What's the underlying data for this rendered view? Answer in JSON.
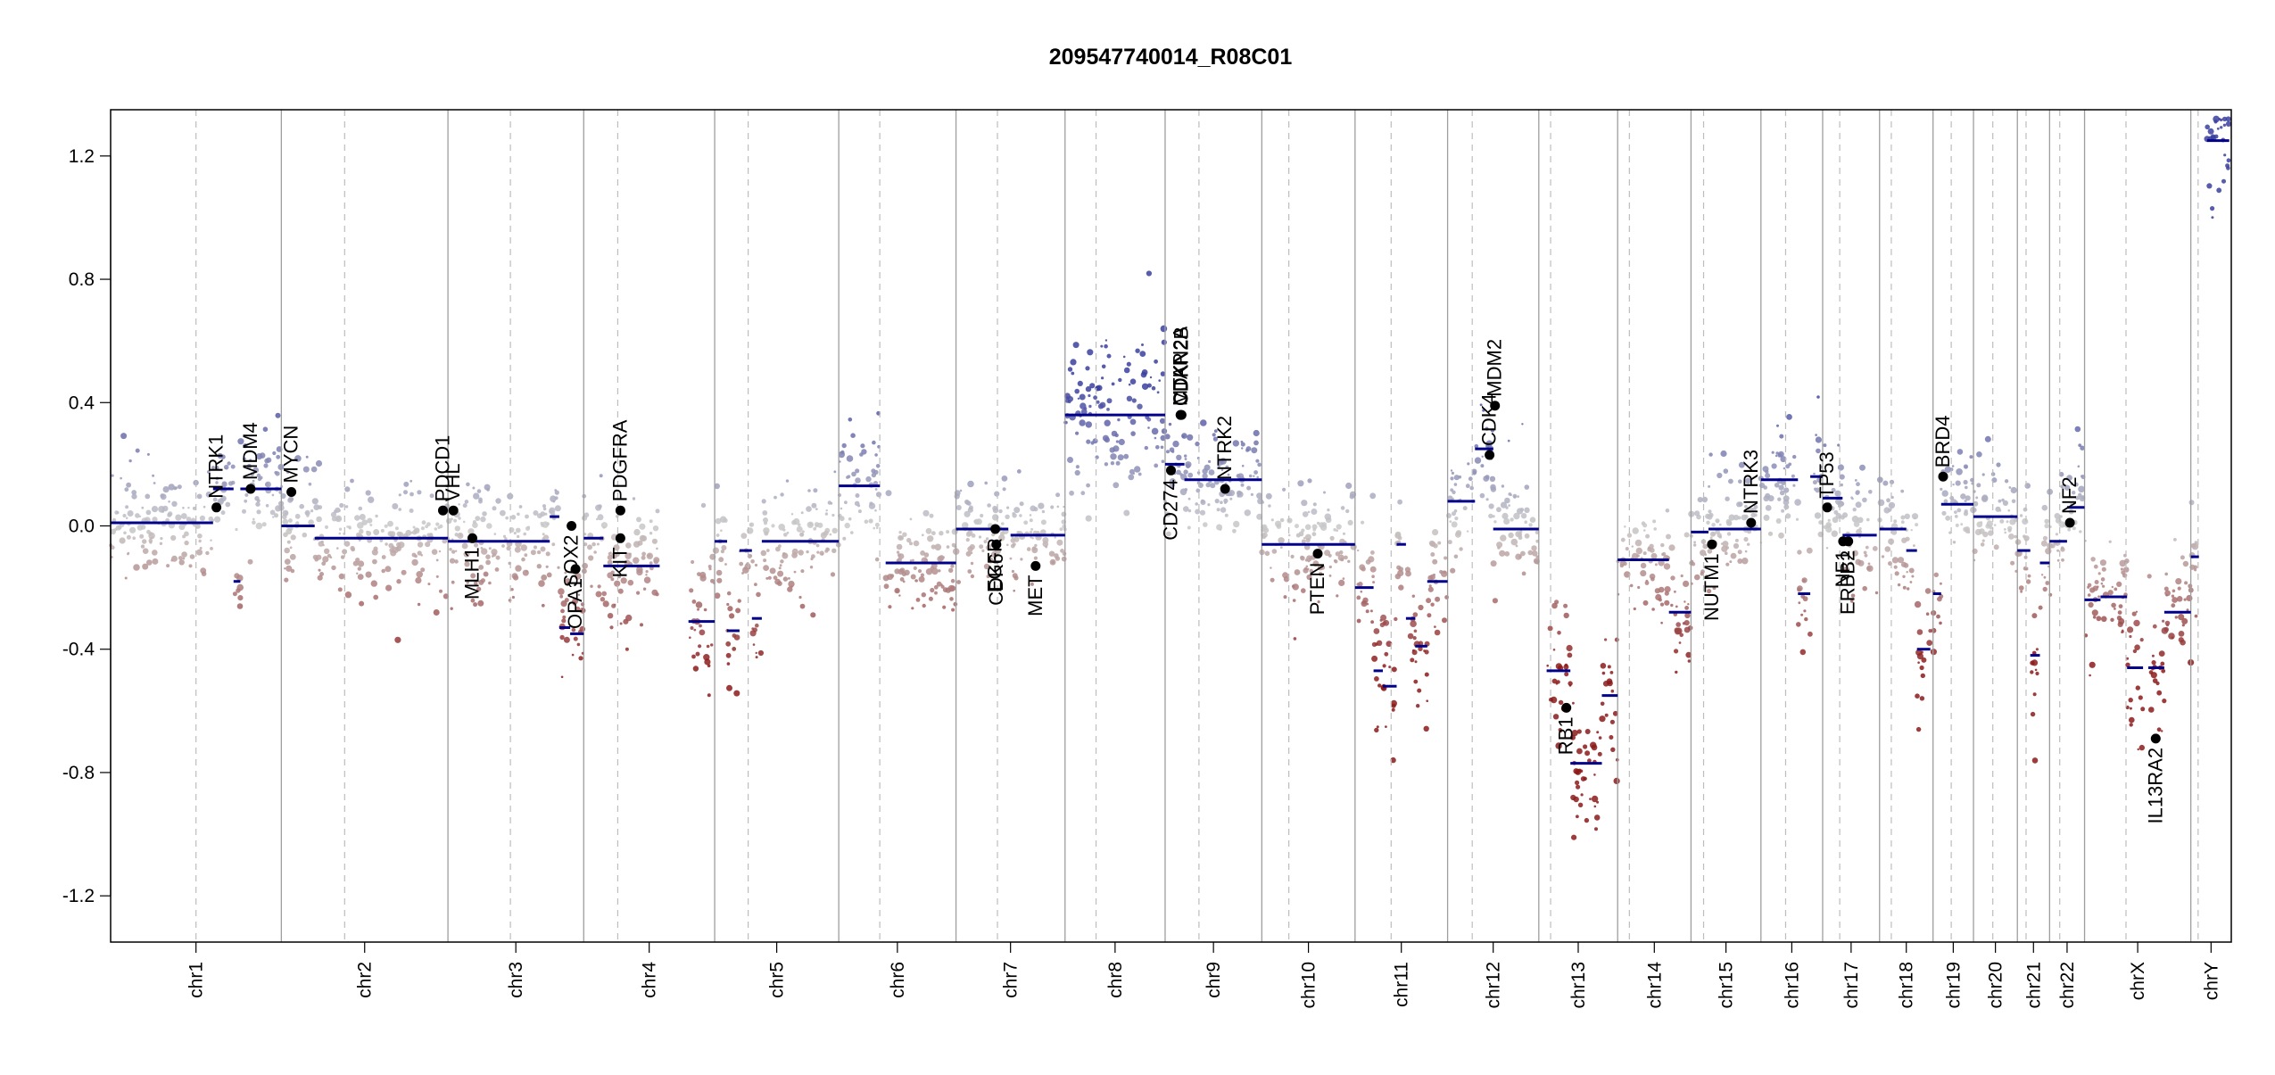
{
  "chart_data": {
    "type": "scatter",
    "title": "209547740014_R08C01",
    "xlabel": "",
    "ylabel": "",
    "ylim": [
      -1.35,
      1.35
    ],
    "y_ticks": [
      "1.2",
      "0.8",
      "0.4",
      "0.0",
      "-0.4",
      "-0.8",
      "-1.2"
    ],
    "y_tick_values": [
      1.2,
      0.8,
      0.4,
      0.0,
      -0.4,
      -0.8,
      -1.2
    ],
    "grid": false,
    "colors": {
      "gain": "#3a3f9e",
      "neutral": "#c9c9c9",
      "loss": "#8b1a1a",
      "segment": "#00008b",
      "gene": "#000000",
      "divider": "#9e9e9e",
      "centromere": "#bdbdbd"
    },
    "chromosomes": [
      {
        "name": "chr1",
        "size": 249,
        "cen": 0.5
      },
      {
        "name": "chr2",
        "size": 243,
        "cen": 0.38
      },
      {
        "name": "chr3",
        "size": 198,
        "cen": 0.46
      },
      {
        "name": "chr4",
        "size": 191,
        "cen": 0.26
      },
      {
        "name": "chr5",
        "size": 181,
        "cen": 0.27
      },
      {
        "name": "chr6",
        "size": 171,
        "cen": 0.35
      },
      {
        "name": "chr7",
        "size": 159,
        "cen": 0.38
      },
      {
        "name": "chr8",
        "size": 146,
        "cen": 0.31
      },
      {
        "name": "chr9",
        "size": 141,
        "cen": 0.35
      },
      {
        "name": "chr10",
        "size": 136,
        "cen": 0.29
      },
      {
        "name": "chr11",
        "size": 135,
        "cen": 0.39
      },
      {
        "name": "chr12",
        "size": 133,
        "cen": 0.27
      },
      {
        "name": "chr13",
        "size": 115,
        "cen": 0.15
      },
      {
        "name": "chr14",
        "size": 107,
        "cen": 0.16
      },
      {
        "name": "chr15",
        "size": 102,
        "cen": 0.18
      },
      {
        "name": "chr16",
        "size": 90,
        "cen": 0.4
      },
      {
        "name": "chr17",
        "size": 83,
        "cen": 0.3
      },
      {
        "name": "chr18",
        "size": 78,
        "cen": 0.22
      },
      {
        "name": "chr19",
        "size": 59,
        "cen": 0.45
      },
      {
        "name": "chr20",
        "size": 64,
        "cen": 0.44
      },
      {
        "name": "chr21",
        "size": 47,
        "cen": 0.27
      },
      {
        "name": "chr22",
        "size": 51,
        "cen": 0.29
      },
      {
        "name": "chrX",
        "size": 155,
        "cen": 0.39
      },
      {
        "name": "chrY",
        "size": 59,
        "cen": 0.18
      }
    ],
    "segments": [
      {
        "chr": "chr1",
        "start": 0.0,
        "end": 0.6,
        "value": 0.01
      },
      {
        "chr": "chr1",
        "start": 0.6,
        "end": 0.72,
        "value": 0.12
      },
      {
        "chr": "chr1",
        "start": 0.72,
        "end": 0.76,
        "value": -0.18
      },
      {
        "chr": "chr1",
        "start": 0.76,
        "end": 1.0,
        "value": 0.12
      },
      {
        "chr": "chr2",
        "start": 0.0,
        "end": 0.2,
        "value": 0.0
      },
      {
        "chr": "chr2",
        "start": 0.2,
        "end": 0.7,
        "value": -0.04
      },
      {
        "chr": "chr2",
        "start": 0.7,
        "end": 1.0,
        "value": -0.04
      },
      {
        "chr": "chr3",
        "start": 0.0,
        "end": 0.75,
        "value": -0.05
      },
      {
        "chr": "chr3",
        "start": 0.75,
        "end": 0.82,
        "value": 0.03
      },
      {
        "chr": "chr3",
        "start": 0.82,
        "end": 0.9,
        "value": -0.33
      },
      {
        "chr": "chr3",
        "start": 0.9,
        "end": 1.0,
        "value": -0.35
      },
      {
        "chr": "chr4",
        "start": 0.0,
        "end": 0.15,
        "value": -0.04
      },
      {
        "chr": "chr4",
        "start": 0.15,
        "end": 0.58,
        "value": -0.13
      },
      {
        "chr": "chr4",
        "start": 0.8,
        "end": 1.0,
        "value": -0.31
      },
      {
        "chr": "chr5",
        "start": 0.0,
        "end": 0.1,
        "value": -0.05
      },
      {
        "chr": "chr5",
        "start": 0.1,
        "end": 0.2,
        "value": -0.34
      },
      {
        "chr": "chr5",
        "start": 0.2,
        "end": 0.3,
        "value": -0.08
      },
      {
        "chr": "chr5",
        "start": 0.3,
        "end": 0.38,
        "value": -0.3
      },
      {
        "chr": "chr5",
        "start": 0.38,
        "end": 1.0,
        "value": -0.05
      },
      {
        "chr": "chr6",
        "start": 0.0,
        "end": 0.35,
        "value": 0.13
      },
      {
        "chr": "chr6",
        "start": 0.4,
        "end": 1.0,
        "value": -0.12
      },
      {
        "chr": "chr7",
        "start": 0.0,
        "end": 0.48,
        "value": -0.01
      },
      {
        "chr": "chr7",
        "start": 0.5,
        "end": 1.0,
        "value": -0.03
      },
      {
        "chr": "chr8",
        "start": 0.0,
        "end": 1.0,
        "value": 0.36
      },
      {
        "chr": "chr9",
        "start": 0.0,
        "end": 0.2,
        "value": 0.2
      },
      {
        "chr": "chr9",
        "start": 0.2,
        "end": 1.0,
        "value": 0.15
      },
      {
        "chr": "chr10",
        "start": 0.0,
        "end": 1.0,
        "value": -0.06
      },
      {
        "chr": "chr11",
        "start": 0.0,
        "end": 0.2,
        "value": -0.2
      },
      {
        "chr": "chr11",
        "start": 0.2,
        "end": 0.3,
        "value": -0.47
      },
      {
        "chr": "chr11",
        "start": 0.3,
        "end": 0.45,
        "value": -0.52
      },
      {
        "chr": "chr11",
        "start": 0.45,
        "end": 0.55,
        "value": -0.06
      },
      {
        "chr": "chr11",
        "start": 0.55,
        "end": 0.65,
        "value": -0.3
      },
      {
        "chr": "chr11",
        "start": 0.65,
        "end": 0.78,
        "value": -0.39
      },
      {
        "chr": "chr11",
        "start": 0.78,
        "end": 1.0,
        "value": -0.18
      },
      {
        "chr": "chr12",
        "start": 0.0,
        "end": 0.3,
        "value": 0.08
      },
      {
        "chr": "chr12",
        "start": 0.3,
        "end": 0.5,
        "value": 0.25
      },
      {
        "chr": "chr12",
        "start": 0.5,
        "end": 1.0,
        "value": -0.01
      },
      {
        "chr": "chr13",
        "start": 0.1,
        "end": 0.4,
        "value": -0.47
      },
      {
        "chr": "chr13",
        "start": 0.4,
        "end": 0.8,
        "value": -0.77
      },
      {
        "chr": "chr13",
        "start": 0.8,
        "end": 1.0,
        "value": -0.55
      },
      {
        "chr": "chr14",
        "start": 0.0,
        "end": 0.7,
        "value": -0.11
      },
      {
        "chr": "chr14",
        "start": 0.7,
        "end": 1.0,
        "value": -0.28
      },
      {
        "chr": "chr15",
        "start": 0.0,
        "end": 0.25,
        "value": -0.02
      },
      {
        "chr": "chr15",
        "start": 0.25,
        "end": 1.0,
        "value": -0.01
      },
      {
        "chr": "chr16",
        "start": 0.0,
        "end": 0.6,
        "value": 0.15
      },
      {
        "chr": "chr16",
        "start": 0.6,
        "end": 0.8,
        "value": -0.22
      },
      {
        "chr": "chr16",
        "start": 0.8,
        "end": 1.0,
        "value": 0.16
      },
      {
        "chr": "chr17",
        "start": 0.0,
        "end": 0.35,
        "value": 0.09
      },
      {
        "chr": "chr17",
        "start": 0.35,
        "end": 0.95,
        "value": -0.03
      },
      {
        "chr": "chr18",
        "start": 0.0,
        "end": 0.5,
        "value": -0.01
      },
      {
        "chr": "chr18",
        "start": 0.5,
        "end": 0.7,
        "value": -0.08
      },
      {
        "chr": "chr18",
        "start": 0.7,
        "end": 0.95,
        "value": -0.4
      },
      {
        "chr": "chr19",
        "start": 0.0,
        "end": 0.2,
        "value": -0.22
      },
      {
        "chr": "chr19",
        "start": 0.2,
        "end": 1.0,
        "value": 0.07
      },
      {
        "chr": "chr20",
        "start": 0.0,
        "end": 1.0,
        "value": 0.03
      },
      {
        "chr": "chr21",
        "start": 0.0,
        "end": 0.4,
        "value": -0.08
      },
      {
        "chr": "chr21",
        "start": 0.4,
        "end": 0.7,
        "value": -0.42
      },
      {
        "chr": "chr21",
        "start": 0.7,
        "end": 1.0,
        "value": -0.12
      },
      {
        "chr": "chr22",
        "start": 0.0,
        "end": 0.5,
        "value": -0.05
      },
      {
        "chr": "chr22",
        "start": 0.5,
        "end": 1.0,
        "value": 0.06
      },
      {
        "chr": "chrX",
        "start": 0.0,
        "end": 0.15,
        "value": -0.24
      },
      {
        "chr": "chrX",
        "start": 0.15,
        "end": 0.4,
        "value": -0.23
      },
      {
        "chr": "chrX",
        "start": 0.4,
        "end": 0.55,
        "value": -0.46
      },
      {
        "chr": "chrX",
        "start": 0.6,
        "end": 0.75,
        "value": -0.46
      },
      {
        "chr": "chrX",
        "start": 0.75,
        "end": 1.0,
        "value": -0.28
      },
      {
        "chr": "chrY",
        "start": 0.0,
        "end": 0.2,
        "value": -0.1
      },
      {
        "chr": "chrY",
        "start": 0.4,
        "end": 0.95,
        "value": 1.25
      }
    ],
    "genes": [
      {
        "name": "NTRK1",
        "chr": "chr1",
        "pos": 0.62,
        "value": 0.06,
        "label": "above"
      },
      {
        "name": "MDM4",
        "chr": "chr1",
        "pos": 0.82,
        "value": 0.12,
        "label": "above"
      },
      {
        "name": "MYCN",
        "chr": "chr2",
        "pos": 0.06,
        "value": 0.11,
        "label": "above"
      },
      {
        "name": "PDCD1",
        "chr": "chr2",
        "pos": 0.97,
        "value": 0.05,
        "label": "above"
      },
      {
        "name": "VHL",
        "chr": "chr3",
        "pos": 0.04,
        "value": 0.05,
        "label": "above"
      },
      {
        "name": "MLH1",
        "chr": "chr3",
        "pos": 0.18,
        "value": -0.04,
        "label": "below"
      },
      {
        "name": "SOX2",
        "chr": "chr3",
        "pos": 0.91,
        "value": 0.0,
        "label": "below"
      },
      {
        "name": "OPA1",
        "chr": "chr3",
        "pos": 0.94,
        "value": -0.14,
        "label": "below"
      },
      {
        "name": "PDGFRA",
        "chr": "chr4",
        "pos": 0.28,
        "value": 0.05,
        "label": "above"
      },
      {
        "name": "KIT",
        "chr": "chr4",
        "pos": 0.28,
        "value": -0.04,
        "label": "below"
      },
      {
        "name": "EGFR",
        "chr": "chr7",
        "pos": 0.36,
        "value": -0.01,
        "label": "below"
      },
      {
        "name": "CDK6",
        "chr": "chr7",
        "pos": 0.37,
        "value": -0.06,
        "label": "below"
      },
      {
        "name": "MET",
        "chr": "chr7",
        "pos": 0.73,
        "value": -0.13,
        "label": "below"
      },
      {
        "name": "CDKN2A",
        "chr": "chr9",
        "pos": 0.16,
        "value": 0.36,
        "label": "above"
      },
      {
        "name": "CDKN2B",
        "chr": "chr9",
        "pos": 0.17,
        "value": 0.36,
        "label": "above"
      },
      {
        "name": "MTAP",
        "chr": "chr9",
        "pos": 0.16,
        "value": 0.36,
        "label": "above"
      },
      {
        "name": "CD274",
        "chr": "chr9",
        "pos": 0.06,
        "value": 0.18,
        "label": "below"
      },
      {
        "name": "NTRK2",
        "chr": "chr9",
        "pos": 0.62,
        "value": 0.12,
        "label": "above"
      },
      {
        "name": "PTEN",
        "chr": "chr10",
        "pos": 0.6,
        "value": -0.09,
        "label": "below"
      },
      {
        "name": "CDK4",
        "chr": "chr12",
        "pos": 0.46,
        "value": 0.23,
        "label": "above"
      },
      {
        "name": "MDM2",
        "chr": "chr12",
        "pos": 0.52,
        "value": 0.39,
        "label": "above"
      },
      {
        "name": "RB1",
        "chr": "chr13",
        "pos": 0.35,
        "value": -0.59,
        "label": "below"
      },
      {
        "name": "NUTM1",
        "chr": "chr15",
        "pos": 0.3,
        "value": -0.06,
        "label": "below"
      },
      {
        "name": "NTRK3",
        "chr": "chr15",
        "pos": 0.86,
        "value": 0.01,
        "label": "above"
      },
      {
        "name": "TP53",
        "chr": "chr17",
        "pos": 0.08,
        "value": 0.06,
        "label": "above"
      },
      {
        "name": "NF1",
        "chr": "chr17",
        "pos": 0.36,
        "value": -0.05,
        "label": "below"
      },
      {
        "name": "ERBB2",
        "chr": "chr17",
        "pos": 0.45,
        "value": -0.05,
        "label": "below"
      },
      {
        "name": "BRD4",
        "chr": "chr19",
        "pos": 0.25,
        "value": 0.16,
        "label": "above"
      },
      {
        "name": "NF2",
        "chr": "chr22",
        "pos": 0.58,
        "value": 0.01,
        "label": "above"
      },
      {
        "name": "IL13RA2",
        "chr": "chrX",
        "pos": 0.67,
        "value": -0.69,
        "label": "below"
      }
    ]
  }
}
